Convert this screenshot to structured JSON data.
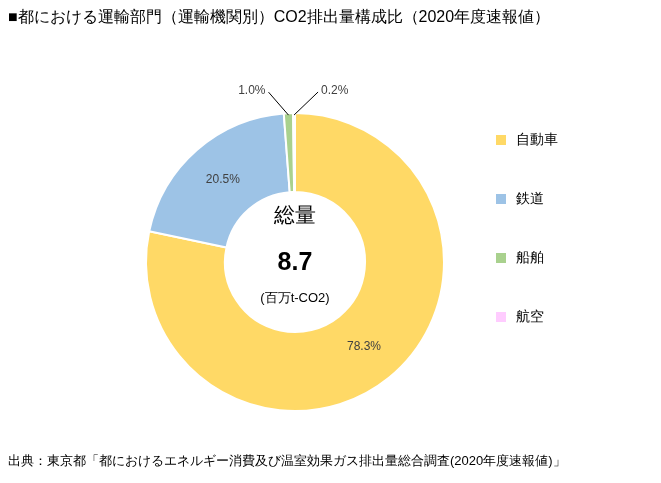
{
  "chart_data": {
    "type": "doughnut",
    "title": "■都における運輸部門（運輸機関別）CO2排出量構成比（2020年度速報値）",
    "categories": [
      "自動車",
      "鉄道",
      "船舶",
      "航空"
    ],
    "values": [
      78.3,
      20.5,
      1.0,
      0.2
    ],
    "value_labels": [
      "78.3%",
      "20.5%",
      "1.0%",
      "0.2%"
    ],
    "colors": [
      "#FFD966",
      "#9DC3E6",
      "#A9D18E",
      "#FFCCFF"
    ],
    "data_labels": true,
    "legend": "right",
    "total": {
      "label": "総量",
      "value": 8.7,
      "unit": "(百万t-CO2)"
    },
    "source": "出典：東京都「都におけるエネルギー消費及び温室効果ガス排出量総合調査(2020年度速報値)」"
  }
}
